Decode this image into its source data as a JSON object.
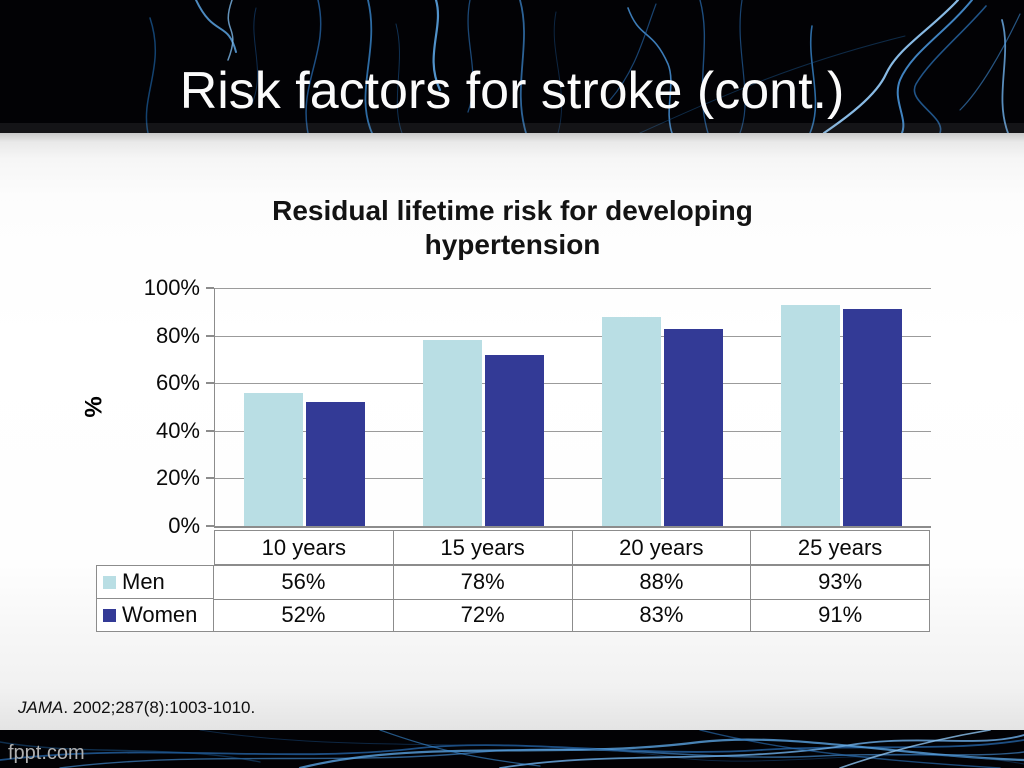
{
  "slide": {
    "title": "Risk factors for stroke (cont.)",
    "citation": {
      "journal": "JAMA",
      "rest": ". 2002;287(8):1003-1010."
    },
    "watermark": "fppt.com"
  },
  "chart_data": {
    "type": "bar",
    "title": "Residual lifetime risk for developing hypertension",
    "title_lines": [
      "Residual lifetime risk for developing",
      "hypertension"
    ],
    "ylabel": "%",
    "ylim": [
      0,
      100
    ],
    "yticks": [
      "100%",
      "80%",
      "60%",
      "40%",
      "20%",
      "0%"
    ],
    "grid": "horizontal gridlines every 20%",
    "legend_position": "data-table-left",
    "categories": [
      "10 years",
      "15 years",
      "20 years",
      "25 years"
    ],
    "series": [
      {
        "name": "Men",
        "color": "#b9dee4",
        "values": [
          56,
          78,
          88,
          93
        ],
        "labels": [
          "56%",
          "78%",
          "88%",
          "93%"
        ]
      },
      {
        "name": "Women",
        "color": "#333a96",
        "values": [
          52,
          72,
          83,
          91
        ],
        "labels": [
          "52%",
          "72%",
          "83%",
          "91%"
        ]
      }
    ]
  },
  "colors": {
    "banner_background": "#020205",
    "banner_line_blue": "#5aa2e0",
    "bar_men": "#b9dee4",
    "bar_women": "#333a96",
    "gridline": "#9b9b9b",
    "table_border": "#8c8c8c",
    "title_text": "#fbfbfb"
  }
}
